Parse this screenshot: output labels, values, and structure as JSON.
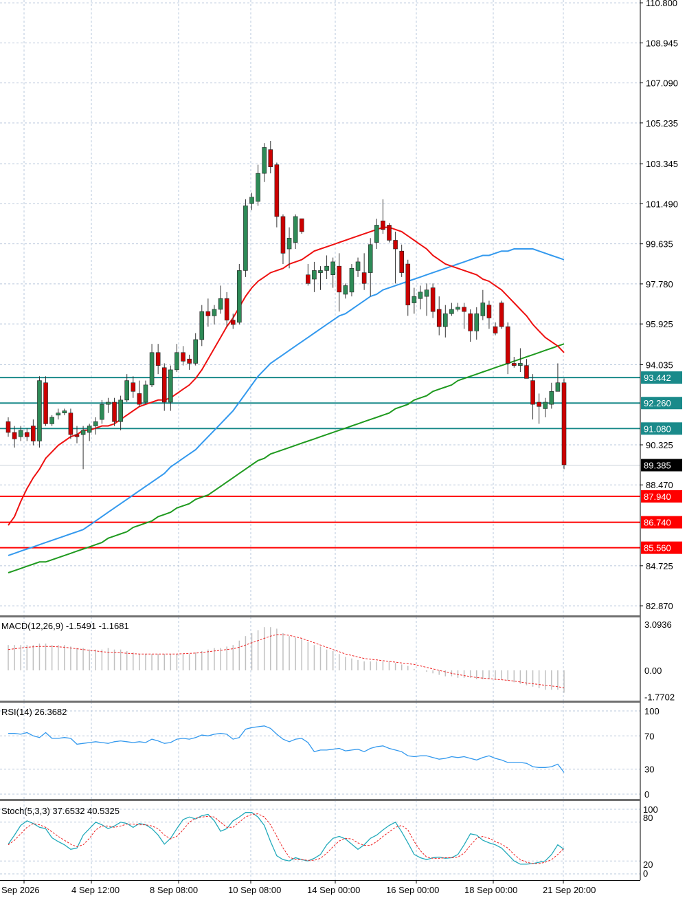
{
  "chart_data": [
    {
      "type": "candlestick",
      "panel": "price",
      "price_axis_ticks": [
        "110.800",
        "108.945",
        "107.090",
        "105.235",
        "103.345",
        "101.490",
        "99.635",
        "97.780",
        "95.925",
        "94.035",
        "90.325",
        "88.470",
        "84.725",
        "82.870"
      ],
      "time_axis_ticks": [
        "Sep 2026",
        "4 Sep 12:00",
        "8 Sep 08:00",
        "10 Sep 08:00",
        "14 Sep 00:00",
        "16 Sep 00:00",
        "18 Sep 00:00",
        "21 Sep 20:00"
      ],
      "current_price": "89.385",
      "levels": [
        {
          "label": "93.442",
          "value": 93.442,
          "color": "#1a8a8a",
          "role": "resistance"
        },
        {
          "label": "92.260",
          "value": 92.26,
          "color": "#1a8a8a",
          "role": "resistance"
        },
        {
          "label": "91.080",
          "value": 91.08,
          "color": "#1a8a8a",
          "role": "resistance"
        },
        {
          "label": "87.940",
          "value": 87.94,
          "color": "#ff0000",
          "role": "support"
        },
        {
          "label": "86.740",
          "value": 86.74,
          "color": "#ff0000",
          "role": "support"
        },
        {
          "label": "85.560",
          "value": 85.56,
          "color": "#ff0000",
          "role": "support"
        }
      ],
      "candles": [
        [
          91.4,
          91.6,
          90.7,
          90.9
        ],
        [
          90.9,
          91.2,
          90.2,
          90.6
        ],
        [
          90.7,
          91.2,
          90.5,
          91.0
        ],
        [
          90.9,
          91.1,
          90.5,
          90.7
        ],
        [
          91.2,
          91.5,
          90.3,
          90.5
        ],
        [
          90.5,
          93.5,
          90.2,
          93.3
        ],
        [
          93.2,
          93.5,
          91.2,
          91.3
        ],
        [
          91.3,
          91.7,
          91.2,
          91.6
        ],
        [
          91.7,
          92.0,
          91.5,
          91.8
        ],
        [
          91.8,
          92.0,
          91.7,
          91.9
        ],
        [
          91.8,
          92.0,
          90.6,
          90.8
        ],
        [
          90.8,
          91.2,
          90.4,
          90.7
        ],
        [
          90.8,
          91.2,
          89.2,
          91.0
        ],
        [
          90.9,
          91.3,
          90.5,
          91.2
        ],
        [
          91.2,
          91.6,
          90.8,
          91.4
        ],
        [
          91.5,
          92.4,
          91.3,
          92.2
        ],
        [
          92.2,
          92.5,
          91.8,
          92.3
        ],
        [
          92.3,
          92.5,
          91.2,
          91.4
        ],
        [
          91.4,
          92.6,
          91.0,
          92.4
        ],
        [
          92.4,
          93.6,
          92.3,
          93.3
        ],
        [
          93.2,
          93.5,
          92.5,
          92.8
        ],
        [
          92.7,
          93.3,
          92.1,
          92.2
        ],
        [
          92.3,
          93.3,
          92.2,
          93.1
        ],
        [
          93.1,
          95.0,
          93.0,
          94.6
        ],
        [
          94.6,
          95.0,
          93.6,
          94.0
        ],
        [
          93.9,
          94.1,
          91.9,
          92.3
        ],
        [
          92.3,
          94.0,
          91.9,
          93.8
        ],
        [
          93.8,
          95.0,
          93.7,
          94.6
        ],
        [
          94.6,
          94.9,
          94.0,
          94.2
        ],
        [
          94.3,
          94.5,
          93.8,
          94.1
        ],
        [
          94.1,
          95.5,
          94.0,
          95.2
        ],
        [
          95.2,
          96.8,
          94.9,
          96.5
        ],
        [
          96.5,
          97.1,
          95.8,
          96.3
        ],
        [
          96.3,
          96.8,
          95.9,
          96.6
        ],
        [
          96.6,
          97.7,
          96.4,
          97.1
        ],
        [
          97.1,
          97.4,
          95.8,
          96.1
        ],
        [
          96.1,
          96.4,
          95.7,
          95.9
        ],
        [
          96.0,
          98.7,
          95.9,
          98.4
        ],
        [
          98.4,
          101.7,
          98.1,
          101.4
        ],
        [
          101.5,
          102.0,
          101.2,
          101.8
        ],
        [
          101.6,
          103.3,
          101.4,
          102.9
        ],
        [
          102.9,
          104.3,
          102.5,
          104.1
        ],
        [
          104.0,
          104.4,
          102.9,
          103.2
        ],
        [
          103.3,
          103.4,
          100.4,
          100.9
        ],
        [
          100.9,
          101.0,
          98.7,
          99.2
        ],
        [
          99.4,
          100.4,
          98.5,
          99.9
        ],
        [
          99.7,
          101.0,
          99.4,
          100.9
        ],
        [
          100.8,
          100.8,
          100.1,
          100.2
        ],
        [
          98.2,
          98.7,
          97.7,
          97.8
        ],
        [
          98.0,
          98.8,
          97.4,
          98.4
        ],
        [
          98.3,
          98.6,
          97.5,
          98.4
        ],
        [
          98.4,
          99.1,
          98.0,
          98.6
        ],
        [
          98.2,
          99.0,
          97.6,
          98.8
        ],
        [
          98.6,
          99.2,
          96.5,
          97.4
        ],
        [
          97.3,
          97.8,
          97.1,
          97.7
        ],
        [
          97.4,
          98.7,
          97.2,
          98.5
        ],
        [
          98.4,
          99.0,
          98.1,
          98.8
        ],
        [
          98.3,
          99.2,
          97.5,
          97.8
        ],
        [
          98.3,
          99.9,
          97.2,
          99.6
        ],
        [
          99.7,
          100.8,
          99.4,
          100.5
        ],
        [
          100.7,
          101.7,
          100.1,
          100.3
        ],
        [
          100.5,
          100.6,
          99.7,
          99.8
        ],
        [
          99.8,
          100.2,
          97.8,
          99.4
        ],
        [
          99.3,
          99.6,
          98.1,
          98.3
        ],
        [
          98.7,
          98.9,
          96.3,
          96.8
        ],
        [
          96.9,
          97.6,
          96.4,
          97.2
        ],
        [
          97.1,
          97.7,
          96.6,
          97.4
        ],
        [
          97.2,
          97.8,
          96.3,
          97.5
        ],
        [
          97.6,
          97.8,
          96.2,
          96.5
        ],
        [
          96.6,
          97.2,
          95.4,
          95.8
        ],
        [
          95.8,
          96.8,
          95.3,
          96.4
        ],
        [
          96.4,
          96.9,
          96.3,
          96.6
        ],
        [
          96.6,
          96.9,
          96.5,
          96.7
        ],
        [
          96.7,
          96.9,
          95.7,
          96.5
        ],
        [
          96.4,
          96.6,
          95.1,
          95.6
        ],
        [
          95.6,
          96.7,
          95.2,
          96.4
        ],
        [
          96.3,
          97.5,
          96.1,
          96.9
        ],
        [
          96.8,
          97.0,
          95.7,
          96.2
        ],
        [
          95.8,
          96.0,
          95.4,
          95.5
        ],
        [
          96.9,
          97.0,
          95.7,
          95.8
        ],
        [
          95.8,
          96.0,
          93.6,
          94.1
        ],
        [
          94.1,
          94.4,
          93.9,
          94.0
        ],
        [
          94.0,
          94.8,
          93.7,
          94.1
        ],
        [
          94.0,
          94.3,
          93.5,
          93.4
        ],
        [
          93.3,
          93.6,
          91.5,
          92.2
        ],
        [
          92.3,
          92.7,
          91.3,
          92.1
        ],
        [
          92.0,
          92.5,
          91.6,
          92.3
        ],
        [
          92.2,
          93.2,
          92.0,
          92.8
        ],
        [
          92.8,
          94.1,
          92.8,
          93.2
        ],
        [
          93.2,
          93.4,
          89.2,
          89.4
        ]
      ],
      "sma_red": [
        86.6,
        87.0,
        87.7,
        88.3,
        88.8,
        89.2,
        89.7,
        90.0,
        90.3,
        90.5,
        90.7,
        90.8,
        91.0,
        91.0,
        91.1,
        91.2,
        91.2,
        91.3,
        91.5,
        91.7,
        91.9,
        92.1,
        92.2,
        92.3,
        92.4,
        92.4,
        92.5,
        92.7,
        92.9,
        93.1,
        93.4,
        93.8,
        94.3,
        94.8,
        95.3,
        95.8,
        96.2,
        96.7,
        97.2,
        97.6,
        97.9,
        98.1,
        98.3,
        98.4,
        98.5,
        98.7,
        98.8,
        98.9,
        99.1,
        99.3,
        99.4,
        99.5,
        99.6,
        99.7,
        99.8,
        99.9,
        100.0,
        100.1,
        100.2,
        100.3,
        100.4,
        100.4,
        100.3,
        100.2,
        100.0,
        99.8,
        99.6,
        99.4,
        99.1,
        98.9,
        98.7,
        98.6,
        98.5,
        98.4,
        98.3,
        98.2,
        98.0,
        97.9,
        97.7,
        97.5,
        97.2,
        96.9,
        96.6,
        96.3,
        95.9,
        95.6,
        95.3,
        95.1,
        94.9,
        94.6
      ],
      "sma_blue": [
        85.2,
        85.3,
        85.4,
        85.5,
        85.6,
        85.7,
        85.8,
        85.9,
        86.0,
        86.1,
        86.2,
        86.3,
        86.4,
        86.6,
        86.8,
        87.0,
        87.2,
        87.4,
        87.6,
        87.8,
        88.0,
        88.2,
        88.4,
        88.6,
        88.8,
        89.0,
        89.3,
        89.5,
        89.7,
        89.9,
        90.1,
        90.4,
        90.7,
        91.0,
        91.3,
        91.6,
        91.9,
        92.3,
        92.7,
        93.1,
        93.5,
        93.8,
        94.1,
        94.3,
        94.5,
        94.7,
        94.9,
        95.1,
        95.3,
        95.5,
        95.7,
        95.9,
        96.1,
        96.3,
        96.4,
        96.6,
        96.8,
        97.0,
        97.2,
        97.3,
        97.5,
        97.6,
        97.7,
        97.8,
        97.9,
        98.0,
        98.1,
        98.2,
        98.3,
        98.4,
        98.5,
        98.6,
        98.7,
        98.8,
        98.9,
        99.0,
        99.1,
        99.1,
        99.2,
        99.3,
        99.3,
        99.4,
        99.4,
        99.4,
        99.4,
        99.3,
        99.2,
        99.1,
        99.0,
        98.9
      ],
      "sma_green": [
        84.4,
        84.5,
        84.6,
        84.7,
        84.8,
        84.9,
        84.9,
        85.0,
        85.1,
        85.2,
        85.3,
        85.4,
        85.5,
        85.6,
        85.7,
        85.8,
        86.0,
        86.1,
        86.2,
        86.3,
        86.5,
        86.6,
        86.7,
        86.8,
        87.0,
        87.1,
        87.2,
        87.4,
        87.5,
        87.6,
        87.8,
        87.9,
        88.0,
        88.2,
        88.4,
        88.6,
        88.8,
        89.0,
        89.2,
        89.4,
        89.6,
        89.7,
        89.9,
        90.0,
        90.1,
        90.2,
        90.3,
        90.4,
        90.5,
        90.6,
        90.7,
        90.8,
        90.9,
        91.0,
        91.1,
        91.2,
        91.3,
        91.4,
        91.5,
        91.6,
        91.7,
        91.8,
        92.0,
        92.1,
        92.2,
        92.4,
        92.5,
        92.6,
        92.8,
        92.9,
        93.0,
        93.1,
        93.3,
        93.4,
        93.5,
        93.6,
        93.7,
        93.8,
        93.9,
        94.0,
        94.1,
        94.2,
        94.3,
        94.4,
        94.5,
        94.6,
        94.7,
        94.8,
        94.9,
        95.0
      ]
    },
    {
      "type": "histogram",
      "panel": "macd",
      "title": "MACD(12,26,9) -1.5491 -1.1681",
      "axis_ticks": [
        "3.0936",
        "0.00",
        "-1.7702"
      ],
      "ylim": [
        -1.7702,
        3.0936
      ],
      "histogram": [
        1.7,
        1.7,
        1.7,
        1.7,
        1.7,
        1.8,
        1.8,
        1.7,
        1.7,
        1.7,
        1.6,
        1.5,
        1.5,
        1.4,
        1.4,
        1.4,
        1.5,
        1.4,
        1.4,
        1.3,
        1.2,
        1.1,
        1.1,
        1.1,
        1.1,
        1.1,
        1.1,
        1.1,
        1.1,
        1.1,
        1.2,
        1.3,
        1.4,
        1.5,
        1.5,
        1.6,
        1.7,
        2.0,
        2.3,
        2.5,
        2.7,
        2.9,
        2.9,
        2.8,
        2.5,
        2.3,
        2.2,
        2.1,
        1.9,
        1.7,
        1.6,
        1.4,
        1.3,
        1.1,
        0.9,
        0.8,
        0.7,
        0.6,
        0.6,
        0.6,
        0.6,
        0.6,
        0.5,
        0.4,
        0.3,
        0.1,
        0.0,
        -0.1,
        -0.2,
        -0.3,
        -0.4,
        -0.4,
        -0.5,
        -0.5,
        -0.5,
        -0.6,
        -0.6,
        -0.6,
        -0.6,
        -0.6,
        -0.7,
        -0.8,
        -0.9,
        -1.0,
        -1.1,
        -1.2,
        -1.3,
        -1.3,
        -1.3,
        -1.5
      ],
      "signal": [
        1.4,
        1.45,
        1.5,
        1.55,
        1.58,
        1.6,
        1.6,
        1.6,
        1.58,
        1.55,
        1.5,
        1.45,
        1.4,
        1.35,
        1.3,
        1.25,
        1.22,
        1.2,
        1.18,
        1.15,
        1.12,
        1.1,
        1.1,
        1.1,
        1.1,
        1.1,
        1.1,
        1.1,
        1.12,
        1.14,
        1.16,
        1.2,
        1.25,
        1.3,
        1.35,
        1.4,
        1.45,
        1.55,
        1.7,
        1.85,
        2.0,
        2.15,
        2.3,
        2.4,
        2.4,
        2.35,
        2.25,
        2.15,
        2.0,
        1.85,
        1.7,
        1.55,
        1.4,
        1.25,
        1.1,
        1.0,
        0.9,
        0.8,
        0.75,
        0.7,
        0.65,
        0.6,
        0.55,
        0.5,
        0.45,
        0.4,
        0.3,
        0.2,
        0.1,
        0.0,
        -0.1,
        -0.2,
        -0.28,
        -0.35,
        -0.42,
        -0.48,
        -0.52,
        -0.56,
        -0.6,
        -0.63,
        -0.67,
        -0.72,
        -0.78,
        -0.85,
        -0.9,
        -0.95,
        -1.0,
        -1.05,
        -1.1,
        -1.17
      ]
    },
    {
      "type": "line",
      "panel": "rsi",
      "title": "RSI(14) 26.3682",
      "axis_ticks": [
        "100",
        "70",
        "30",
        "0"
      ],
      "ylim": [
        0,
        100
      ],
      "values": [
        73,
        73,
        72,
        74,
        70,
        68,
        74,
        67,
        67,
        68,
        67,
        60,
        61,
        62,
        63,
        62,
        61,
        63,
        64,
        63,
        62,
        63,
        62,
        66,
        64,
        61,
        62,
        66,
        67,
        66,
        68,
        71,
        70,
        72,
        73,
        72,
        66,
        68,
        78,
        80,
        81,
        82,
        79,
        72,
        66,
        63,
        66,
        67,
        62,
        51,
        53,
        53,
        54,
        55,
        52,
        53,
        54,
        51,
        55,
        57,
        58,
        55,
        53,
        51,
        46,
        45,
        46,
        46,
        44,
        42,
        43,
        45,
        44,
        45,
        43,
        41,
        44,
        46,
        43,
        41,
        38,
        38,
        38,
        37,
        33,
        32,
        32,
        33,
        36,
        26
      ]
    },
    {
      "type": "line",
      "panel": "stochastic",
      "title": "Stoch(5,3,3) 37.6532 40.5325",
      "axis_ticks": [
        "100",
        "80",
        "20",
        "0"
      ],
      "ylim": [
        0,
        100
      ],
      "k": [
        46,
        60,
        75,
        82,
        78,
        72,
        70,
        56,
        50,
        45,
        38,
        40,
        60,
        70,
        80,
        76,
        70,
        74,
        80,
        78,
        72,
        78,
        76,
        70,
        60,
        46,
        55,
        70,
        84,
        88,
        85,
        90,
        92,
        82,
        66,
        70,
        82,
        88,
        95,
        95,
        88,
        75,
        50,
        28,
        22,
        20,
        25,
        22,
        20,
        24,
        30,
        45,
        55,
        58,
        54,
        46,
        38,
        45,
        55,
        60,
        68,
        75,
        80,
        65,
        48,
        30,
        25,
        22,
        25,
        26,
        24,
        25,
        30,
        45,
        62,
        60,
        52,
        48,
        45,
        40,
        30,
        20,
        15,
        15,
        16,
        18,
        20,
        30,
        45,
        38
      ],
      "d": [
        45,
        52,
        62,
        72,
        78,
        76,
        72,
        65,
        58,
        52,
        46,
        42,
        45,
        55,
        68,
        74,
        74,
        72,
        74,
        77,
        77,
        76,
        76,
        74,
        70,
        60,
        54,
        58,
        68,
        80,
        86,
        88,
        89,
        88,
        80,
        72,
        72,
        80,
        88,
        92,
        93,
        88,
        76,
        58,
        40,
        26,
        22,
        22,
        21,
        21,
        24,
        32,
        42,
        51,
        55,
        54,
        48,
        44,
        44,
        50,
        58,
        65,
        72,
        75,
        68,
        50,
        36,
        26,
        24,
        24,
        25,
        25,
        26,
        32,
        44,
        55,
        58,
        55,
        50,
        46,
        40,
        30,
        22,
        18,
        16,
        16,
        18,
        22,
        30,
        40
      ]
    }
  ]
}
